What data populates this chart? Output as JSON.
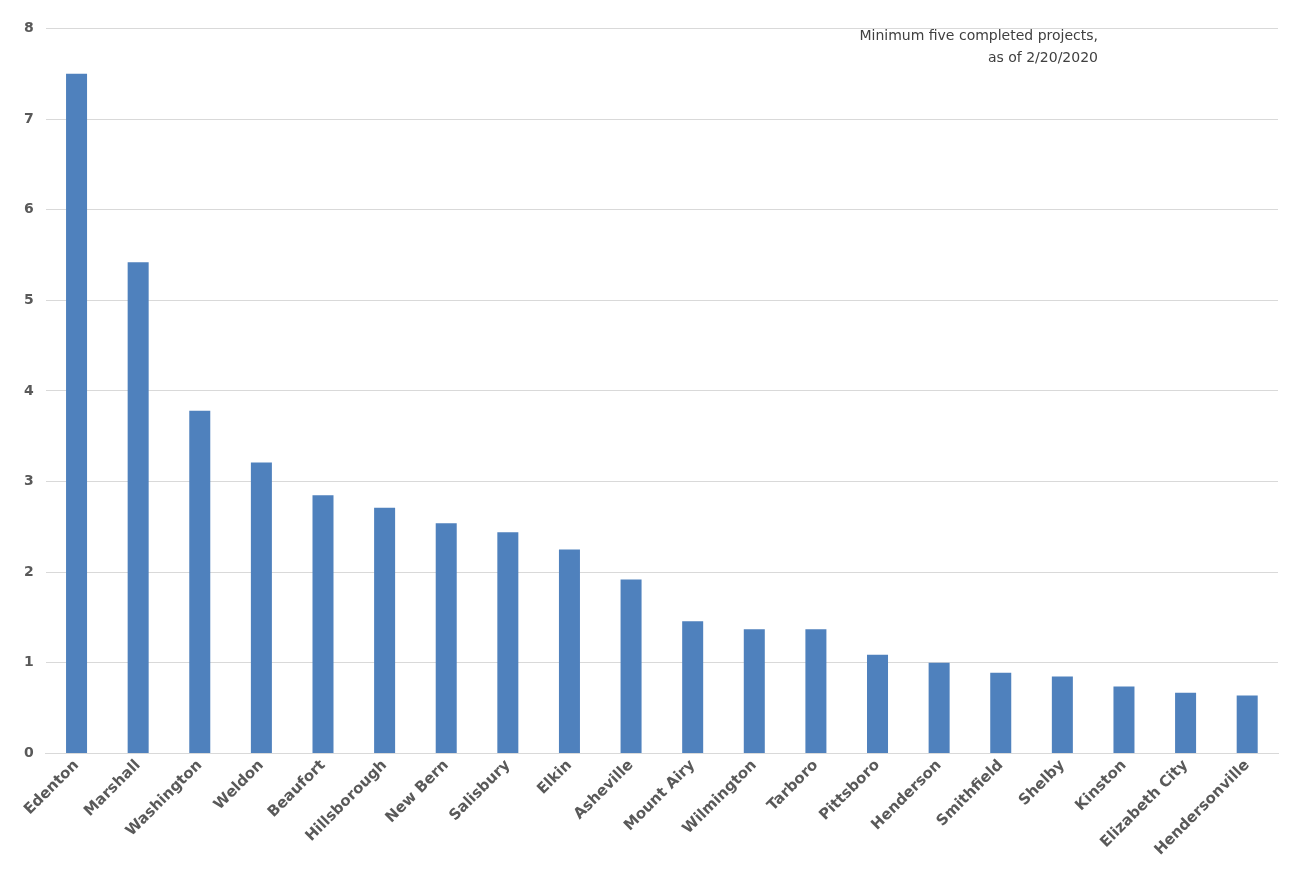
{
  "chart_data": {
    "type": "bar",
    "categories": [
      "Edenton",
      "Marshall",
      "Washington",
      "Weldon",
      "Beaufort",
      "Hillsborough",
      "New Bern",
      "Salisbury",
      "Elkin",
      "Asheville",
      "Mount Airy",
      "Wilmington",
      "Tarboro",
      "Pittsboro",
      "Henderson",
      "Smithfield",
      "Shelby",
      "Kinston",
      "Elizabeth City",
      "Hendersonville"
    ],
    "values": [
      7.5,
      5.42,
      3.78,
      3.21,
      2.85,
      2.71,
      2.54,
      2.44,
      2.25,
      1.92,
      1.46,
      1.37,
      1.37,
      1.09,
      1.0,
      0.89,
      0.85,
      0.74,
      0.67,
      0.64
    ],
    "color": "#4f81bd",
    "ylim": [
      0,
      8
    ],
    "yticks": [
      0,
      1,
      2,
      3,
      4,
      5,
      6,
      7,
      8
    ],
    "grid": "y",
    "legend": false,
    "annotations": [
      "Minimum five completed projects,\nas of 2/20/2020"
    ]
  }
}
